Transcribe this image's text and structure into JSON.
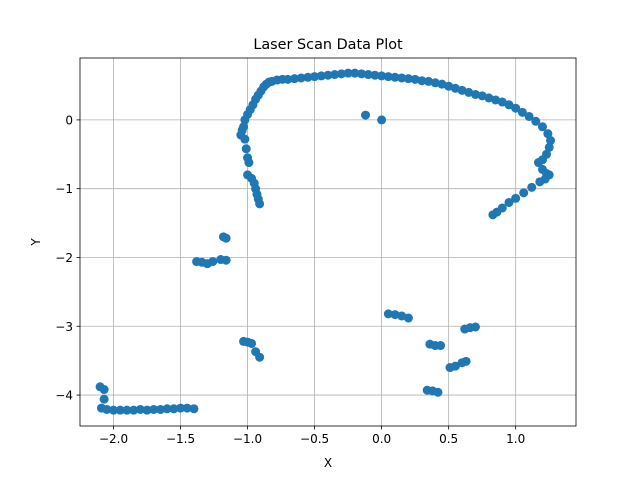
{
  "chart_data": {
    "type": "scatter",
    "title": "Laser Scan Data Plot",
    "xlabel": "X",
    "ylabel": "Y",
    "xlim": [
      -2.25,
      1.45
    ],
    "ylim": [
      -4.45,
      0.9
    ],
    "xticks": [
      -2.0,
      -1.5,
      -1.0,
      -0.5,
      0.0,
      0.5,
      1.0
    ],
    "xtick_labels": [
      "−2.0",
      "−1.5",
      "−1.0",
      "−0.5",
      "0.0",
      "0.5",
      "1.0"
    ],
    "yticks": [
      0,
      -1,
      -2,
      -3,
      -4
    ],
    "ytick_labels": [
      "0",
      "−1",
      "−2",
      "−3",
      "−4"
    ],
    "grid": true,
    "legend": "none",
    "marker_color": "#1f77b4",
    "points": [
      [
        -1.05,
        -0.22
      ],
      [
        -1.03,
        -0.1
      ],
      [
        -1.02,
        0.0
      ],
      [
        -1.0,
        0.08
      ],
      [
        -0.98,
        0.15
      ],
      [
        -0.96,
        0.22
      ],
      [
        -0.94,
        0.3
      ],
      [
        -0.92,
        0.36
      ],
      [
        -0.9,
        0.42
      ],
      [
        -0.88,
        0.48
      ],
      [
        -0.86,
        0.52
      ],
      [
        -0.84,
        0.55
      ],
      [
        -0.82,
        0.56
      ],
      [
        -0.78,
        0.58
      ],
      [
        -0.74,
        0.59
      ],
      [
        -0.7,
        0.59
      ],
      [
        -0.65,
        0.6
      ],
      [
        -0.6,
        0.61
      ],
      [
        -0.55,
        0.62
      ],
      [
        -0.5,
        0.63
      ],
      [
        -0.45,
        0.64
      ],
      [
        -0.4,
        0.65
      ],
      [
        -0.35,
        0.66
      ],
      [
        -0.3,
        0.67
      ],
      [
        -0.25,
        0.68
      ],
      [
        -0.2,
        0.68
      ],
      [
        -0.15,
        0.67
      ],
      [
        -0.1,
        0.66
      ],
      [
        -0.05,
        0.65
      ],
      [
        0.0,
        0.64
      ],
      [
        0.05,
        0.63
      ],
      [
        0.1,
        0.62
      ],
      [
        0.15,
        0.61
      ],
      [
        0.2,
        0.6
      ],
      [
        0.25,
        0.59
      ],
      [
        0.3,
        0.57
      ],
      [
        0.35,
        0.56
      ],
      [
        0.4,
        0.54
      ],
      [
        0.45,
        0.52
      ],
      [
        0.5,
        0.49
      ],
      [
        0.55,
        0.46
      ],
      [
        0.6,
        0.43
      ],
      [
        0.65,
        0.4
      ],
      [
        0.7,
        0.37
      ],
      [
        -0.12,
        0.07
      ],
      [
        0.0,
        0.0
      ],
      [
        0.75,
        0.35
      ],
      [
        0.8,
        0.32
      ],
      [
        0.85,
        0.29
      ],
      [
        0.9,
        0.26
      ],
      [
        0.95,
        0.22
      ],
      [
        1.0,
        0.17
      ],
      [
        1.05,
        0.11
      ],
      [
        1.1,
        0.05
      ],
      [
        1.15,
        -0.02
      ],
      [
        1.2,
        -0.1
      ],
      [
        1.24,
        -0.2
      ],
      [
        1.26,
        -0.3
      ],
      [
        1.25,
        -0.4
      ],
      [
        1.23,
        -0.5
      ],
      [
        1.2,
        -0.58
      ],
      [
        1.17,
        -0.62
      ],
      [
        1.2,
        -0.72
      ],
      [
        1.23,
        -0.78
      ],
      [
        1.25,
        -0.8
      ],
      [
        1.22,
        -0.86
      ],
      [
        1.18,
        -0.9
      ],
      [
        1.12,
        -0.98
      ],
      [
        1.06,
        -1.06
      ],
      [
        1.0,
        -1.14
      ],
      [
        0.95,
        -1.2
      ],
      [
        0.9,
        -1.28
      ],
      [
        0.86,
        -1.34
      ],
      [
        0.83,
        -1.38
      ],
      [
        -1.04,
        -0.15
      ],
      [
        -1.02,
        -0.28
      ],
      [
        -1.01,
        -0.42
      ],
      [
        -1.0,
        -0.55
      ],
      [
        -0.99,
        -0.62
      ],
      [
        -1.0,
        -0.8
      ],
      [
        -0.97,
        -0.85
      ],
      [
        -0.95,
        -0.92
      ],
      [
        -0.94,
        -1.0
      ],
      [
        -0.93,
        -1.08
      ],
      [
        -0.92,
        -1.15
      ],
      [
        -0.91,
        -1.22
      ],
      [
        -1.18,
        -1.7
      ],
      [
        -1.16,
        -1.72
      ],
      [
        -1.38,
        -2.06
      ],
      [
        -1.34,
        -2.07
      ],
      [
        -1.3,
        -2.09
      ],
      [
        -1.26,
        -2.06
      ],
      [
        -1.2,
        -2.03
      ],
      [
        -1.16,
        -2.04
      ],
      [
        -1.03,
        -3.22
      ],
      [
        -1.0,
        -3.23
      ],
      [
        -0.97,
        -3.25
      ],
      [
        -0.94,
        -3.37
      ],
      [
        -0.91,
        -3.45
      ],
      [
        0.05,
        -2.82
      ],
      [
        0.1,
        -2.83
      ],
      [
        0.15,
        -2.85
      ],
      [
        0.2,
        -2.88
      ],
      [
        0.62,
        -3.04
      ],
      [
        0.66,
        -3.02
      ],
      [
        0.7,
        -3.01
      ],
      [
        0.36,
        -3.26
      ],
      [
        0.4,
        -3.28
      ],
      [
        0.44,
        -3.28
      ],
      [
        0.51,
        -3.6
      ],
      [
        0.55,
        -3.58
      ],
      [
        0.6,
        -3.53
      ],
      [
        0.63,
        -3.51
      ],
      [
        0.34,
        -3.93
      ],
      [
        0.38,
        -3.94
      ],
      [
        0.42,
        -3.96
      ],
      [
        -2.1,
        -3.88
      ],
      [
        -2.07,
        -3.92
      ],
      [
        -2.07,
        -4.06
      ],
      [
        -2.09,
        -4.19
      ],
      [
        -2.05,
        -4.21
      ],
      [
        -2.0,
        -4.22
      ],
      [
        -1.95,
        -4.22
      ],
      [
        -1.9,
        -4.22
      ],
      [
        -1.85,
        -4.22
      ],
      [
        -1.8,
        -4.21
      ],
      [
        -1.75,
        -4.22
      ],
      [
        -1.7,
        -4.21
      ],
      [
        -1.65,
        -4.21
      ],
      [
        -1.6,
        -4.2
      ],
      [
        -1.55,
        -4.2
      ],
      [
        -1.5,
        -4.19
      ],
      [
        -1.45,
        -4.19
      ],
      [
        -1.4,
        -4.2
      ]
    ]
  }
}
